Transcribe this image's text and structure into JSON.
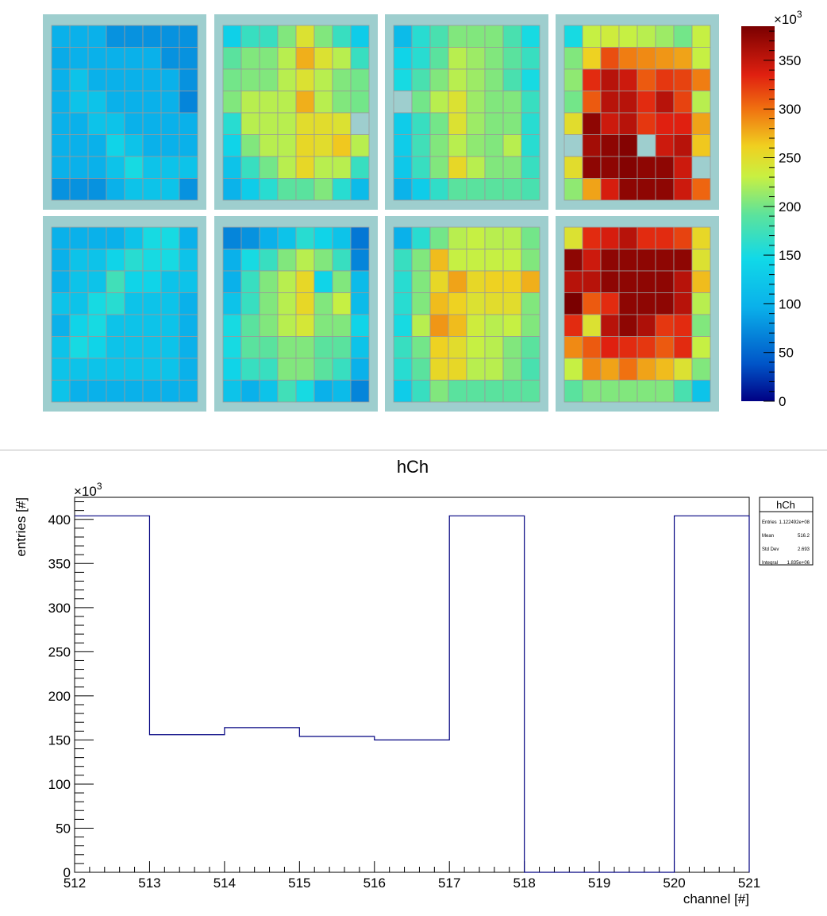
{
  "chart_data": [
    {
      "type": "heatmap",
      "title": "",
      "panels": [
        [
          [
            97,
            97,
            97,
            77,
            77,
            77,
            77,
            77
          ],
          [
            93,
            97,
            97,
            97,
            97,
            97,
            77,
            77
          ],
          [
            97,
            120,
            97,
            97,
            97,
            97,
            97,
            77
          ],
          [
            97,
            120,
            120,
            97,
            97,
            97,
            97,
            69
          ],
          [
            97,
            97,
            120,
            120,
            97,
            97,
            97,
            97
          ],
          [
            97,
            97,
            97,
            140,
            120,
            97,
            97,
            97
          ],
          [
            97,
            97,
            97,
            120,
            150,
            120,
            120,
            120
          ],
          [
            77,
            77,
            77,
            97,
            120,
            120,
            120,
            77
          ]
        ],
        [
          [
            135,
            170,
            170,
            205,
            245,
            205,
            170,
            130
          ],
          [
            190,
            205,
            205,
            225,
            275,
            245,
            225,
            170
          ],
          [
            200,
            205,
            205,
            225,
            245,
            225,
            205,
            200
          ],
          [
            205,
            225,
            225,
            225,
            275,
            225,
            205,
            200
          ],
          [
            160,
            225,
            225,
            225,
            250,
            250,
            245,
            "mask"
          ],
          [
            140,
            205,
            225,
            225,
            255,
            250,
            265,
            225
          ],
          [
            120,
            170,
            200,
            225,
            255,
            225,
            225,
            170
          ],
          [
            100,
            130,
            160,
            190,
            190,
            205,
            160,
            110
          ]
        ],
        [
          [
            110,
            160,
            180,
            205,
            205,
            205,
            180,
            150
          ],
          [
            140,
            160,
            190,
            225,
            215,
            205,
            190,
            170
          ],
          [
            150,
            180,
            205,
            225,
            215,
            205,
            180,
            150
          ],
          [
            "mask",
            200,
            225,
            245,
            215,
            205,
            205,
            170
          ],
          [
            130,
            170,
            200,
            245,
            215,
            205,
            205,
            160
          ],
          [
            130,
            175,
            205,
            225,
            210,
            205,
            225,
            160
          ],
          [
            125,
            170,
            205,
            255,
            225,
            205,
            205,
            170
          ],
          [
            100,
            130,
            165,
            190,
            190,
            190,
            190,
            180
          ]
        ],
        [
          [
            150,
            230,
            235,
            230,
            225,
            215,
            200,
            230
          ],
          [
            205,
            260,
            315,
            295,
            290,
            285,
            280,
            230
          ],
          [
            210,
            330,
            355,
            345,
            310,
            325,
            320,
            295
          ],
          [
            200,
            310,
            355,
            355,
            330,
            355,
            320,
            225
          ],
          [
            250,
            375,
            345,
            355,
            325,
            335,
            335,
            280
          ],
          [
            "mask",
            365,
            375,
            380,
            "mask",
            345,
            355,
            265
          ],
          [
            250,
            375,
            375,
            380,
            375,
            375,
            345,
            "mask"
          ],
          [
            210,
            280,
            340,
            375,
            375,
            375,
            345,
            305
          ]
        ],
        [
          [
            97,
            97,
            97,
            97,
            120,
            150,
            150,
            97
          ],
          [
            97,
            120,
            120,
            140,
            160,
            150,
            150,
            120
          ],
          [
            97,
            120,
            120,
            175,
            140,
            140,
            120,
            120
          ],
          [
            120,
            120,
            150,
            160,
            120,
            120,
            120,
            97
          ],
          [
            97,
            140,
            150,
            120,
            120,
            120,
            120,
            97
          ],
          [
            120,
            150,
            140,
            120,
            120,
            120,
            120,
            97
          ],
          [
            120,
            120,
            120,
            120,
            120,
            120,
            120,
            97
          ],
          [
            120,
            97,
            97,
            97,
            97,
            97,
            97,
            97
          ]
        ],
        [
          [
            69,
            77,
            97,
            120,
            160,
            140,
            120,
            60
          ],
          [
            97,
            150,
            170,
            205,
            225,
            205,
            170,
            69
          ],
          [
            97,
            170,
            205,
            225,
            255,
            140,
            205,
            110
          ],
          [
            120,
            170,
            205,
            225,
            255,
            205,
            230,
            110
          ],
          [
            150,
            190,
            205,
            225,
            240,
            205,
            205,
            140
          ],
          [
            150,
            190,
            190,
            205,
            205,
            190,
            190,
            120
          ],
          [
            140,
            170,
            170,
            205,
            205,
            190,
            170,
            97
          ],
          [
            120,
            97,
            120,
            175,
            150,
            97,
            110,
            69
          ]
        ],
        [
          [
            97,
            160,
            200,
            225,
            230,
            225,
            225,
            200
          ],
          [
            170,
            205,
            270,
            230,
            230,
            230,
            230,
            205
          ],
          [
            160,
            205,
            255,
            280,
            255,
            260,
            260,
            275
          ],
          [
            160,
            205,
            270,
            260,
            245,
            250,
            250,
            205
          ],
          [
            150,
            225,
            285,
            270,
            235,
            225,
            230,
            205
          ],
          [
            170,
            200,
            260,
            250,
            230,
            225,
            205,
            190
          ],
          [
            160,
            190,
            255,
            255,
            225,
            225,
            205,
            180
          ],
          [
            130,
            170,
            205,
            190,
            190,
            190,
            190,
            190
          ]
        ],
        [
          [
            245,
            330,
            340,
            355,
            330,
            330,
            320,
            255
          ],
          [
            375,
            345,
            375,
            375,
            375,
            375,
            375,
            245
          ],
          [
            355,
            355,
            375,
            375,
            375,
            375,
            355,
            270
          ],
          [
            385,
            310,
            330,
            375,
            375,
            375,
            355,
            225
          ],
          [
            330,
            245,
            355,
            375,
            360,
            325,
            330,
            205
          ],
          [
            290,
            310,
            335,
            330,
            325,
            310,
            330,
            230
          ],
          [
            230,
            290,
            280,
            300,
            280,
            270,
            245,
            205
          ],
          [
            190,
            205,
            205,
            205,
            205,
            205,
            180,
            120
          ]
        ]
      ],
      "colorbar": {
        "min": 0,
        "max": 385,
        "ticks": [
          0,
          50,
          100,
          150,
          200,
          250,
          300,
          350
        ],
        "multiplier_label": "×10",
        "multiplier_exp": "3"
      },
      "colors": {
        "mask": "#9ecece",
        "panel_bg": "#9ecece",
        "grid": "#9a9a9a"
      }
    },
    {
      "type": "histogram",
      "title": "hCh",
      "xlabel": "channel [#]",
      "ylabel": "entries [#]",
      "xlim": [
        512,
        521
      ],
      "ylim": [
        0,
        425
      ],
      "x_ticks": [
        512,
        513,
        514,
        515,
        516,
        517,
        518,
        519,
        520,
        521
      ],
      "y_ticks": [
        0,
        50,
        100,
        150,
        200,
        250,
        300,
        350,
        400
      ],
      "y_multiplier_label": "×10",
      "y_multiplier_exp": "3",
      "bins": [
        {
          "x0": 512,
          "x1": 513,
          "value": 404
        },
        {
          "x0": 513,
          "x1": 514,
          "value": 156
        },
        {
          "x0": 514,
          "x1": 515,
          "value": 164
        },
        {
          "x0": 515,
          "x1": 516,
          "value": 154
        },
        {
          "x0": 516,
          "x1": 517,
          "value": 150
        },
        {
          "x0": 517,
          "x1": 518,
          "value": 404
        },
        {
          "x0": 518,
          "x1": 519,
          "value": 0
        },
        {
          "x0": 519,
          "x1": 520,
          "value": 0
        },
        {
          "x0": 520,
          "x1": 521,
          "value": 404
        }
      ],
      "line_color": "#000080",
      "stats_box": {
        "title": "hCh",
        "rows": [
          {
            "label": "Entries",
            "value": "1.122492e+08"
          },
          {
            "label": "Mean",
            "value": "516.2"
          },
          {
            "label": "Std Dev",
            "value": "2.693"
          },
          {
            "label": "Integral",
            "value": "1.835e+06"
          }
        ]
      }
    }
  ]
}
